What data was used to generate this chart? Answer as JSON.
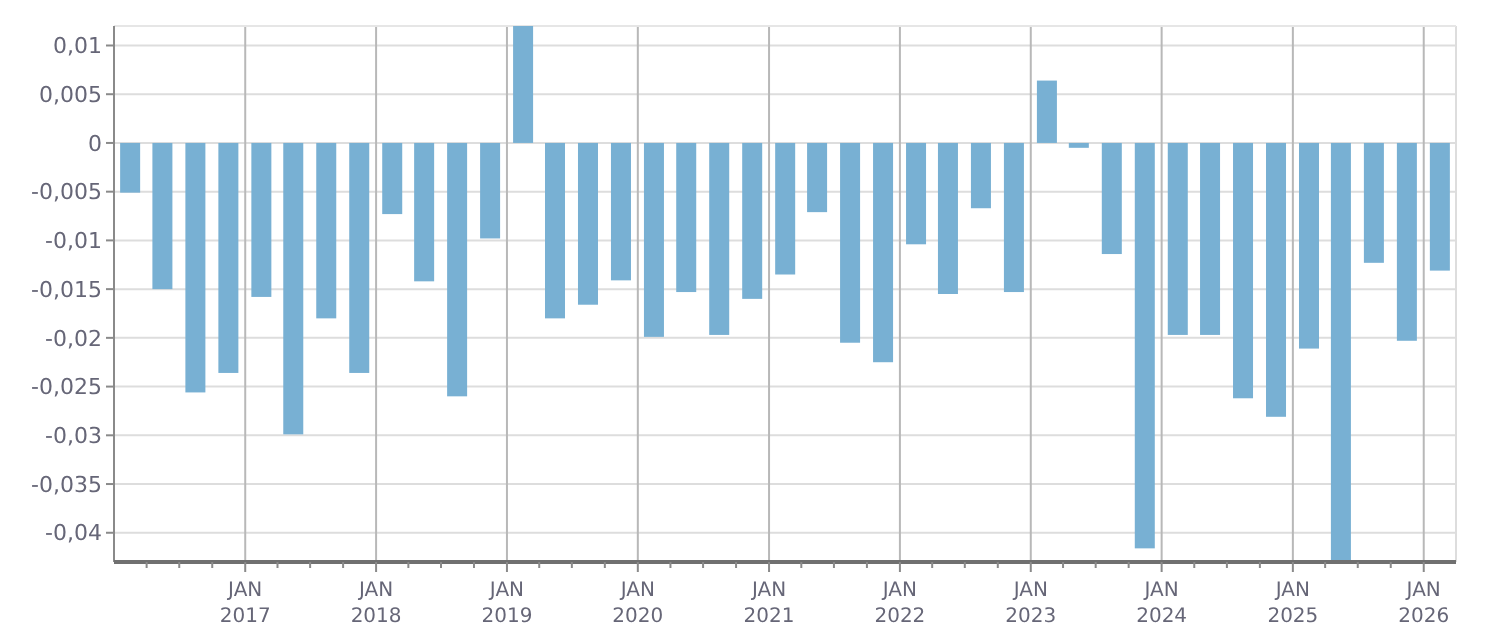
{
  "chart_data": {
    "type": "bar",
    "x": [
      "2016-02-15",
      "2016-05-15",
      "2016-08-15",
      "2016-11-15",
      "2017-02-15",
      "2017-05-15",
      "2017-08-15",
      "2017-11-15",
      "2018-02-15",
      "2018-05-15",
      "2018-08-15",
      "2018-11-15",
      "2019-02-15",
      "2019-05-15",
      "2019-08-15",
      "2019-11-15",
      "2020-02-15",
      "2020-05-15",
      "2020-08-15",
      "2020-11-15",
      "2021-02-15",
      "2021-05-15",
      "2021-08-15",
      "2021-11-15",
      "2022-02-15",
      "2022-05-15",
      "2022-08-15",
      "2022-11-15",
      "2023-02-15",
      "2023-05-15",
      "2023-08-15",
      "2023-11-15",
      "2024-02-15",
      "2024-05-15",
      "2024-08-15",
      "2024-11-15",
      "2025-02-15",
      "2025-05-15",
      "2025-08-15",
      "2025-11-15",
      "2026-02-15"
    ],
    "values": [
      -0.0051,
      -0.015,
      -0.0256,
      -0.0236,
      -0.0158,
      -0.0299,
      -0.018,
      -0.0236,
      -0.0073,
      -0.0142,
      -0.026,
      -0.0098,
      0.012,
      -0.018,
      -0.0166,
      -0.0141,
      -0.0199,
      -0.0153,
      -0.0197,
      -0.016,
      -0.0135,
      -0.0071,
      -0.0205,
      -0.0225,
      -0.0104,
      -0.0155,
      -0.0067,
      -0.0153,
      0.0064,
      -0.0005,
      -0.0114,
      -0.0416,
      -0.0197,
      -0.0197,
      -0.0262,
      -0.0281,
      -0.0211,
      -0.043,
      -0.0123,
      -0.0203,
      -0.0131
    ],
    "color": "#78b0d3",
    "xlim": [
      "2016-01-01",
      "2026-04-01"
    ],
    "xticks": [
      {
        "value": "2016-04-01",
        "label": null
      },
      {
        "value": "2016-07-01",
        "label": null
      },
      {
        "value": "2016-10-01",
        "label": null
      },
      {
        "value": "2017-01-01",
        "label": "JAN 2017"
      },
      {
        "value": "2017-04-01",
        "label": null
      },
      {
        "value": "2017-07-01",
        "label": null
      },
      {
        "value": "2017-10-01",
        "label": null
      },
      {
        "value": "2018-01-01",
        "label": "JAN 2018"
      },
      {
        "value": "2018-04-01",
        "label": null
      },
      {
        "value": "2018-07-01",
        "label": null
      },
      {
        "value": "2018-10-01",
        "label": null
      },
      {
        "value": "2019-01-01",
        "label": "JAN 2019"
      },
      {
        "value": "2019-04-01",
        "label": null
      },
      {
        "value": "2019-07-01",
        "label": null
      },
      {
        "value": "2019-10-01",
        "label": null
      },
      {
        "value": "2020-01-01",
        "label": "JAN 2020"
      },
      {
        "value": "2020-04-01",
        "label": null
      },
      {
        "value": "2020-07-01",
        "label": null
      },
      {
        "value": "2020-10-01",
        "label": null
      },
      {
        "value": "2021-01-01",
        "label": "JAN 2021"
      },
      {
        "value": "2021-04-01",
        "label": null
      },
      {
        "value": "2021-07-01",
        "label": null
      },
      {
        "value": "2021-10-01",
        "label": null
      },
      {
        "value": "2022-01-01",
        "label": "JAN 2022"
      },
      {
        "value": "2022-04-01",
        "label": null
      },
      {
        "value": "2022-07-01",
        "label": null
      },
      {
        "value": "2022-10-01",
        "label": null
      },
      {
        "value": "2023-01-01",
        "label": "JAN 2023"
      },
      {
        "value": "2023-04-01",
        "label": null
      },
      {
        "value": "2023-07-01",
        "label": null
      },
      {
        "value": "2023-10-01",
        "label": null
      },
      {
        "value": "2024-01-01",
        "label": "JAN 2024"
      },
      {
        "value": "2024-04-01",
        "label": null
      },
      {
        "value": "2024-07-01",
        "label": null
      },
      {
        "value": "2024-10-01",
        "label": null
      },
      {
        "value": "2025-01-01",
        "label": "JAN 2025"
      },
      {
        "value": "2025-04-01",
        "label": null
      },
      {
        "value": "2025-07-01",
        "label": null
      },
      {
        "value": "2025-10-01",
        "label": null
      },
      {
        "value": "2026-01-01",
        "label": "JAN 2026"
      }
    ],
    "ylim": [
      -0.043,
      0.012
    ],
    "yticks": [
      {
        "value": 0.01,
        "label": "0,01"
      },
      {
        "value": 0.005,
        "label": "0,005"
      },
      0,
      {
        "value": -0.005,
        "label": "-0,005"
      },
      {
        "value": -0.01,
        "label": "-0,01"
      },
      {
        "value": -0.015,
        "label": "-0,015"
      },
      {
        "value": -0.02,
        "label": "-0,02"
      },
      {
        "value": -0.025,
        "label": "-0,025"
      },
      {
        "value": -0.03,
        "label": "-0,03"
      },
      {
        "value": -0.035,
        "label": "-0,035"
      },
      {
        "value": -0.04,
        "label": "-0,04"
      }
    ],
    "grid": true
  }
}
